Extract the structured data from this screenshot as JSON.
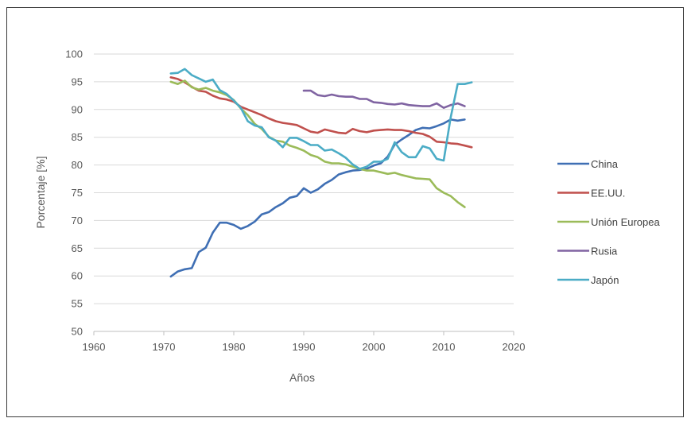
{
  "chart_data": {
    "type": "line",
    "title": "",
    "xlabel": "Años",
    "ylabel": "Porcentaje [%]",
    "xlim": [
      1960,
      2020
    ],
    "ylim": [
      50,
      100
    ],
    "x_ticks": [
      "1960",
      "1970",
      "1980",
      "1990",
      "2000",
      "2010",
      "2020"
    ],
    "y_ticks": [
      "50",
      "55",
      "60",
      "65",
      "70",
      "75",
      "80",
      "85",
      "90",
      "95",
      "100"
    ],
    "grid": "horizontal",
    "legend_position": "right",
    "series": [
      {
        "name": "China",
        "color": "#3f6fb4",
        "x": [
          1971,
          1972,
          1973,
          1974,
          1975,
          1976,
          1977,
          1978,
          1979,
          1980,
          1981,
          1982,
          1983,
          1984,
          1985,
          1986,
          1987,
          1988,
          1989,
          1990,
          1991,
          1992,
          1993,
          1994,
          1995,
          1996,
          1997,
          1998,
          1999,
          2000,
          2001,
          2002,
          2003,
          2004,
          2005,
          2006,
          2007,
          2008,
          2009,
          2010,
          2011,
          2012,
          2013
        ],
        "y": [
          59.9,
          60.8,
          61.2,
          61.4,
          64.3,
          65.1,
          67.8,
          69.6,
          69.6,
          69.2,
          68.5,
          69.0,
          69.8,
          71.1,
          71.5,
          72.4,
          73.1,
          74.1,
          74.4,
          75.8,
          75.0,
          75.6,
          76.6,
          77.3,
          78.3,
          78.7,
          79.0,
          79.1,
          79.3,
          79.9,
          80.3,
          81.5,
          83.7,
          84.6,
          85.4,
          86.3,
          86.7,
          86.6,
          87.0,
          87.5,
          88.2,
          88.0,
          88.2
        ]
      },
      {
        "name": "EE.UU.",
        "color": "#c0504d",
        "x": [
          1971,
          1972,
          1973,
          1974,
          1975,
          1976,
          1977,
          1978,
          1979,
          1980,
          1981,
          1982,
          1983,
          1984,
          1985,
          1986,
          1987,
          1988,
          1989,
          1990,
          1991,
          1992,
          1993,
          1994,
          1995,
          1996,
          1997,
          1998,
          1999,
          2000,
          2001,
          2002,
          2003,
          2004,
          2005,
          2006,
          2007,
          2008,
          2009,
          2010,
          2011,
          2012,
          2013,
          2014
        ],
        "y": [
          95.8,
          95.5,
          94.9,
          94.1,
          93.4,
          93.2,
          92.5,
          92.0,
          91.8,
          91.4,
          90.5,
          90.0,
          89.5,
          89.0,
          88.4,
          87.9,
          87.6,
          87.4,
          87.2,
          86.6,
          86.0,
          85.8,
          86.4,
          86.1,
          85.8,
          85.7,
          86.5,
          86.1,
          85.9,
          86.2,
          86.3,
          86.4,
          86.3,
          86.3,
          86.1,
          85.8,
          85.6,
          85.1,
          84.2,
          84.1,
          83.9,
          83.8,
          83.5,
          83.2
        ]
      },
      {
        "name": "Unión Europea",
        "color": "#9bbb59",
        "x": [
          1971,
          1972,
          1973,
          1974,
          1975,
          1976,
          1977,
          1978,
          1979,
          1980,
          1981,
          1982,
          1983,
          1984,
          1985,
          1986,
          1987,
          1988,
          1989,
          1990,
          1991,
          1992,
          1993,
          1994,
          1995,
          1996,
          1997,
          1998,
          1999,
          2000,
          2001,
          2002,
          2003,
          2004,
          2005,
          2006,
          2007,
          2008,
          2009,
          2010,
          2011,
          2012,
          2013
        ],
        "y": [
          95.0,
          94.6,
          95.2,
          94.0,
          93.6,
          93.9,
          93.4,
          93.1,
          92.6,
          91.7,
          90.2,
          89.0,
          87.4,
          86.5,
          85.1,
          84.4,
          84.2,
          83.5,
          83.1,
          82.6,
          81.8,
          81.4,
          80.6,
          80.3,
          80.3,
          80.1,
          79.7,
          79.3,
          79.0,
          79.0,
          78.7,
          78.4,
          78.6,
          78.2,
          77.9,
          77.6,
          77.5,
          77.4,
          75.8,
          75.0,
          74.4,
          73.3,
          72.4
        ]
      },
      {
        "name": "Rusia",
        "color": "#8064a2",
        "x": [
          1990,
          1991,
          1992,
          1993,
          1994,
          1995,
          1996,
          1997,
          1998,
          1999,
          2000,
          2001,
          2002,
          2003,
          2004,
          2005,
          2006,
          2007,
          2008,
          2009,
          2010,
          2011,
          2012,
          2013
        ],
        "y": [
          93.4,
          93.4,
          92.6,
          92.4,
          92.7,
          92.4,
          92.3,
          92.3,
          91.9,
          91.9,
          91.3,
          91.2,
          91.0,
          90.9,
          91.1,
          90.8,
          90.7,
          90.6,
          90.6,
          91.1,
          90.3,
          90.8,
          91.1,
          90.6
        ]
      },
      {
        "name": "Japón",
        "color": "#4bacc6",
        "x": [
          1971,
          1972,
          1973,
          1974,
          1975,
          1976,
          1977,
          1978,
          1979,
          1980,
          1981,
          1982,
          1983,
          1984,
          1985,
          1986,
          1987,
          1988,
          1989,
          1990,
          1991,
          1992,
          1993,
          1994,
          1995,
          1996,
          1997,
          1998,
          1999,
          2000,
          2001,
          2002,
          2003,
          2004,
          2005,
          2006,
          2007,
          2008,
          2009,
          2010,
          2011,
          2012,
          2013,
          2014
        ],
        "y": [
          96.5,
          96.6,
          97.3,
          96.2,
          95.6,
          95.0,
          95.4,
          93.5,
          92.8,
          91.6,
          90.3,
          87.9,
          87.1,
          86.8,
          85.0,
          84.4,
          83.2,
          84.9,
          84.9,
          84.3,
          83.6,
          83.6,
          82.6,
          82.8,
          82.1,
          81.3,
          80.1,
          79.3,
          79.7,
          80.6,
          80.6,
          81.1,
          84.1,
          82.3,
          81.4,
          81.4,
          83.4,
          83.0,
          81.1,
          80.8,
          88.6,
          94.6,
          94.6,
          94.9
        ]
      }
    ]
  }
}
